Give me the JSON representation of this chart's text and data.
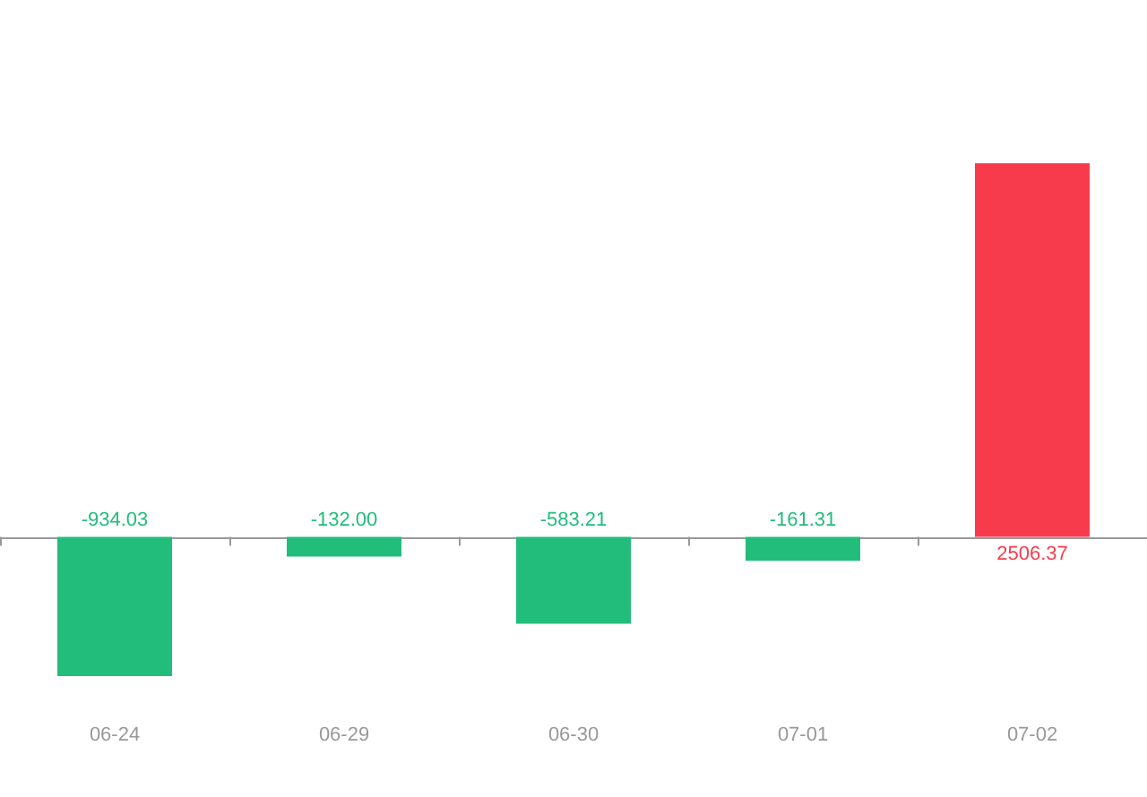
{
  "chart_data": {
    "type": "bar",
    "categories": [
      "06-24",
      "06-29",
      "06-30",
      "07-01",
      "07-02"
    ],
    "values": [
      -934.03,
      -132.0,
      -583.21,
      -161.31,
      2506.37
    ],
    "colors": [
      "#22bd7b",
      "#22bd7b",
      "#22bd7b",
      "#22bd7b",
      "#f73b4c"
    ],
    "value_labels": [
      "-934.03",
      "-132.00",
      "-583.21",
      "-161.31",
      "2506.37"
    ]
  }
}
